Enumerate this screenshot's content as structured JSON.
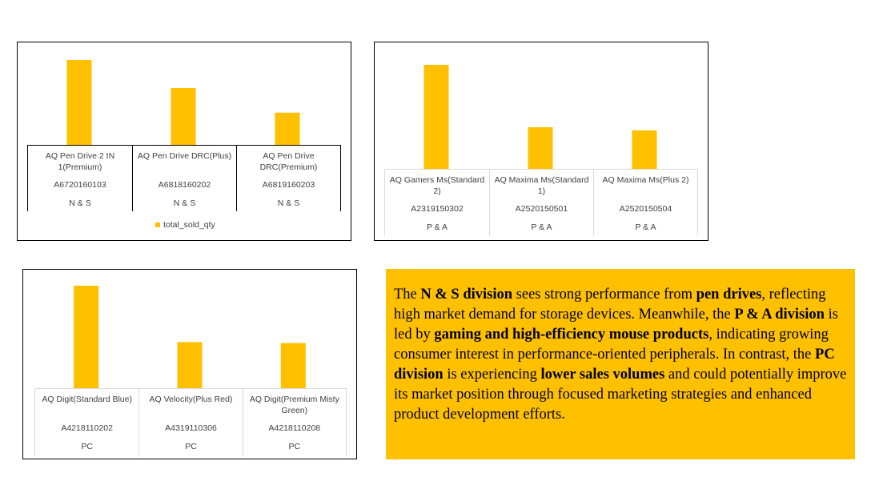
{
  "colors": {
    "bar": "#ffc000",
    "note_bg": "#ffc000"
  },
  "chart_data": [
    {
      "type": "bar",
      "title": "",
      "categories": [
        "AQ Pen Drive 2 IN 1(Premium)",
        "AQ Pen Drive DRC(Plus)",
        "AQ Pen Drive DRC(Premium)"
      ],
      "codes": [
        "A6720160103",
        "A6818160202",
        "A6819160203"
      ],
      "divisions": [
        "N & S",
        "N & S",
        "N & S"
      ],
      "series": [
        {
          "name": "total_sold_qty",
          "values": [
            100,
            67,
            38
          ]
        }
      ],
      "ylim": [
        0,
        100
      ],
      "legend": "bottom"
    },
    {
      "type": "bar",
      "title": "",
      "categories": [
        "AQ Gamers Ms(Standard 2)",
        "AQ Maxima Ms(Standard 1)",
        "AQ Maxima Ms(Plus 2)"
      ],
      "codes": [
        "A2319150302",
        "A2520150501",
        "A2520150504"
      ],
      "divisions": [
        "P & A",
        "P & A",
        "P & A"
      ],
      "series": [
        {
          "values": [
            100,
            40,
            37
          ]
        }
      ],
      "ylim": [
        0,
        100
      ]
    },
    {
      "type": "bar",
      "title": "",
      "categories": [
        "AQ Digit(Standard Blue)",
        "AQ Velocity(Plus Red)",
        "AQ Digit(Premium Misty Green)"
      ],
      "codes": [
        "A4218110202",
        "A4319110306",
        "A4218110208"
      ],
      "divisions": [
        "PC",
        "PC",
        "PC"
      ],
      "series": [
        {
          "values": [
            100,
            45,
            44
          ]
        }
      ],
      "ylim": [
        0,
        100
      ]
    }
  ],
  "note": {
    "p1": "The ",
    "b1": "N & S division",
    "p2": " sees strong performance from ",
    "b2": "pen drives",
    "p3": ", reflecting high market demand for storage devices. Meanwhile, the ",
    "b3": "P & A division",
    "p4": " is led by ",
    "b4": "gaming and high-efficiency mouse products",
    "p5": ", indicating growing consumer interest in performance-oriented peripherals. In contrast, the ",
    "b5": "PC division",
    "p6": " is experiencing ",
    "b6": "lower sales volumes",
    "p7": " and could potentially improve its market position through focused marketing strategies and enhanced product development efforts."
  }
}
